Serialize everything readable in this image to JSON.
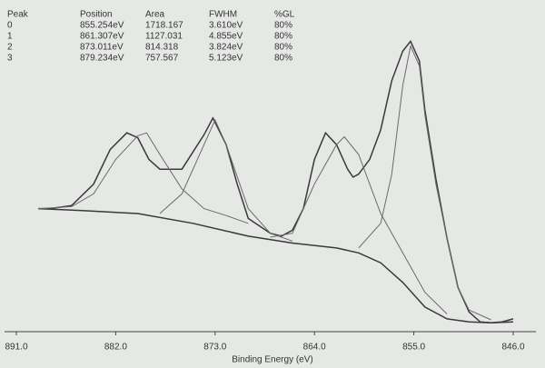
{
  "chart_data": {
    "type": "line",
    "xlabel": "Binding Energy (eV)",
    "xlim": [
      891,
      846
    ],
    "xticks": [
      {
        "value": 891,
        "label": "891.0"
      },
      {
        "value": 882,
        "label": "882.0"
      },
      {
        "value": 873,
        "label": "873.0"
      },
      {
        "value": 864,
        "label": "864.0"
      },
      {
        "value": 855,
        "label": "855.0"
      },
      {
        "value": 846,
        "label": "846.0"
      }
    ],
    "ylim": [
      0,
      300
    ],
    "grid": false,
    "series": [
      {
        "color": "#3a3a3a",
        "x": [
          889,
          888,
          886,
          884,
          882.5,
          881,
          880,
          879,
          878,
          876,
          874,
          873.2,
          872,
          871,
          870,
          868,
          867,
          866,
          865,
          864,
          863,
          862,
          861,
          860.5,
          860,
          859,
          858,
          857,
          856,
          855.3,
          854.5,
          854,
          853,
          852,
          851,
          850,
          849,
          848,
          847,
          846
        ],
        "values": [
          125,
          125,
          128,
          150,
          185,
          202,
          197,
          175,
          165,
          165,
          200,
          217,
          190,
          150,
          115,
          100,
          97,
          103,
          125,
          175,
          202,
          190,
          165,
          157,
          160,
          175,
          205,
          255,
          285,
          295,
          275,
          225,
          155,
          95,
          45,
          20,
          10,
          9,
          10,
          13
        ]
      },
      {
        "color": "#3a3a3a",
        "x": [
          889,
          885,
          880,
          875,
          870,
          866,
          862,
          860,
          858,
          856,
          854,
          852,
          850,
          848,
          846
        ],
        "values": [
          125,
          123,
          120,
          110,
          97,
          90,
          85,
          80,
          70,
          50,
          25,
          13,
          10,
          9,
          10
        ]
      },
      {
        "color": "#6a6a6a",
        "x": [
          889,
          886,
          884,
          882,
          880,
          879.2,
          878,
          876,
          874,
          872,
          870
        ],
        "values": [
          125,
          127,
          140,
          175,
          199,
          202,
          180,
          145,
          125,
          118,
          110
        ]
      },
      {
        "color": "#6a6a6a",
        "x": [
          878,
          876,
          874,
          873,
          872,
          870,
          868,
          866
        ],
        "values": [
          120,
          140,
          190,
          215,
          190,
          125,
          100,
          92
        ]
      },
      {
        "color": "#6a6a6a",
        "x": [
          868,
          866,
          864,
          862,
          861.3,
          860,
          858,
          856,
          854,
          852
        ],
        "values": [
          96,
          100,
          150,
          190,
          198,
          180,
          120,
          80,
          40,
          18
        ]
      },
      {
        "color": "#6a6a6a",
        "x": [
          860,
          858,
          857,
          856,
          855.3,
          854.5,
          854,
          853,
          852,
          851,
          850,
          848
        ],
        "values": [
          85,
          110,
          160,
          250,
          290,
          270,
          220,
          150,
          95,
          45,
          22,
          12
        ]
      }
    ]
  },
  "peak_table": {
    "columns": [
      "Peak",
      "Position",
      "Area",
      "FWHM",
      "%GL"
    ],
    "rows": [
      [
        "0",
        "855.254eV",
        "1718.167",
        "3.610eV",
        "80%"
      ],
      [
        "1",
        "861.307eV",
        "1127.031",
        "4.855eV",
        "80%"
      ],
      [
        "2",
        "873.011eV",
        "814.318",
        "3.824eV",
        "80%"
      ],
      [
        "3",
        "879.234eV",
        "757.567",
        "5.123eV",
        "80%"
      ]
    ]
  }
}
